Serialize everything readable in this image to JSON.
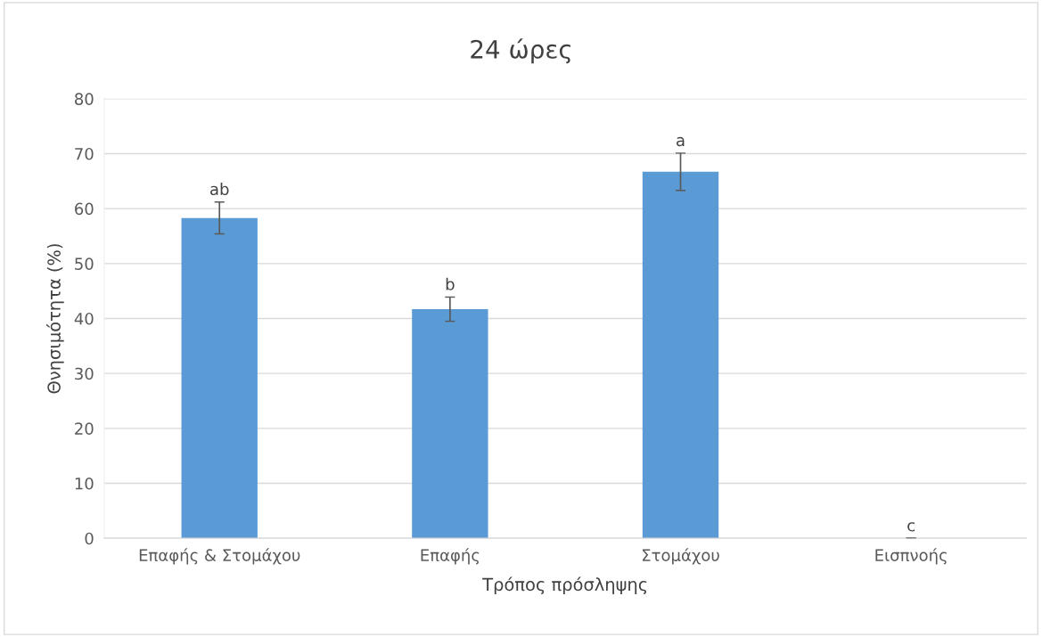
{
  "chart_data": {
    "type": "bar",
    "title": "24 ώρες",
    "xlabel": "Τρόπος πρόσληψης",
    "ylabel": "Θνησιμότητα (%)",
    "categories": [
      "Επαφής & Στομάχου",
      "Επαφής",
      "Στομάχου",
      "Εισπνοής"
    ],
    "values": [
      58.3,
      41.7,
      66.7,
      0
    ],
    "errors": [
      2.9,
      2.2,
      3.4,
      0
    ],
    "color": "#5b9bd5",
    "ylim": [
      0,
      80
    ],
    "yticks": [
      0,
      10,
      20,
      30,
      40,
      50,
      60,
      70,
      80
    ],
    "grid": "y",
    "annotations": [
      {
        "text": "ab",
        "x": "Επαφής & Στομάχου",
        "y": 61.2
      },
      {
        "text": "b",
        "x": "Επαφής",
        "y": 43.9
      },
      {
        "text": "a",
        "x": "Στομάχου",
        "y": 70.1
      },
      {
        "text": "c",
        "x": "Εισπνοής",
        "y": 0
      }
    ]
  }
}
